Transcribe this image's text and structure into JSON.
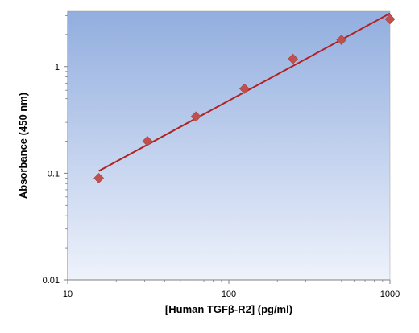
{
  "chart_data": {
    "type": "scatter",
    "title": "",
    "xlabel": "[Human TGFβ-R2] (pg/ml)",
    "ylabel": "Absorbance (450 nm)",
    "x_scale": "log",
    "y_scale": "log",
    "xlim": [
      10,
      1000
    ],
    "ylim": [
      0.01,
      3.3
    ],
    "x_ticks": [
      10,
      100,
      1000
    ],
    "x_tick_labels": [
      "10",
      "100",
      "1000"
    ],
    "y_ticks": [
      0.01,
      0.1,
      1
    ],
    "y_tick_labels": [
      "0.01",
      "0.1",
      "1"
    ],
    "grid": false,
    "legend": "none",
    "series": [
      {
        "marker": "diamond",
        "color": "#c0504d",
        "x": [
          15.6,
          31.25,
          62.5,
          125,
          250,
          500,
          1000
        ],
        "y": [
          0.09,
          0.2,
          0.34,
          0.62,
          1.18,
          1.78,
          2.78
        ]
      }
    ],
    "fit_line": {
      "color": "#b22222",
      "x": [
        15.6,
        1000
      ],
      "y": [
        0.105,
        3.15
      ]
    },
    "colors": {
      "plot_background_top": "#92aedf",
      "plot_background_bottom": "#eef2fb"
    }
  }
}
